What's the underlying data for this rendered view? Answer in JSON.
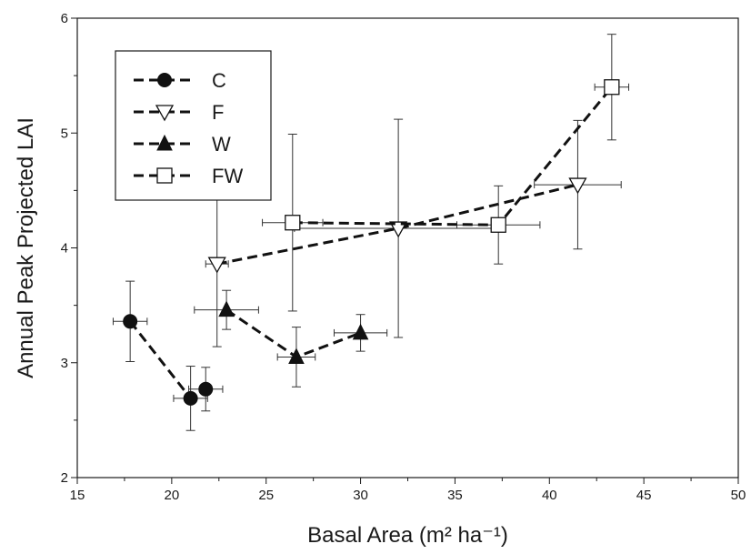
{
  "chart_data": {
    "type": "scatter",
    "xlabel": "Basal Area (m² ha⁻¹)",
    "ylabel": "Annual Peak Projected LAI",
    "xlim": [
      15,
      50
    ],
    "ylim": [
      2,
      6
    ],
    "xticks": [
      15,
      20,
      25,
      30,
      35,
      40,
      45,
      50
    ],
    "yticks": [
      2,
      3,
      4,
      5,
      6
    ],
    "grid": false,
    "legend_position": "top-left",
    "line_style": "dashed",
    "series": [
      {
        "name": "C",
        "marker": "filled-circle",
        "points": [
          {
            "x": 17.8,
            "y": 3.36,
            "xerr": 0.9,
            "yerr": 0.35
          },
          {
            "x": 21.0,
            "y": 2.69,
            "xerr": 0.9,
            "yerr": 0.28
          },
          {
            "x": 21.8,
            "y": 2.77,
            "xerr": 0.9,
            "yerr": 0.19
          }
        ]
      },
      {
        "name": "F",
        "marker": "open-triangle-down",
        "points": [
          {
            "x": 22.4,
            "y": 3.86,
            "xerr": 0.6,
            "yerr": 0.72
          },
          {
            "x": 32.0,
            "y": 4.17,
            "xerr": 5.5,
            "yerr": 0.95
          },
          {
            "x": 41.5,
            "y": 4.55,
            "xerr": 2.3,
            "yerr": 0.56
          }
        ]
      },
      {
        "name": "W",
        "marker": "filled-triangle-up",
        "points": [
          {
            "x": 22.9,
            "y": 3.46,
            "xerr": 1.7,
            "yerr": 0.17
          },
          {
            "x": 26.6,
            "y": 3.05,
            "xerr": 1.0,
            "yerr": 0.26
          },
          {
            "x": 30.0,
            "y": 3.26,
            "xerr": 1.4,
            "yerr": 0.16
          }
        ]
      },
      {
        "name": "FW",
        "marker": "open-square",
        "points": [
          {
            "x": 26.4,
            "y": 4.22,
            "xerr": 1.6,
            "yerr": 0.77
          },
          {
            "x": 37.3,
            "y": 4.2,
            "xerr": 2.2,
            "yerr": 0.34
          },
          {
            "x": 43.3,
            "y": 5.4,
            "xerr": 0.9,
            "yerr": 0.46
          }
        ]
      }
    ]
  }
}
